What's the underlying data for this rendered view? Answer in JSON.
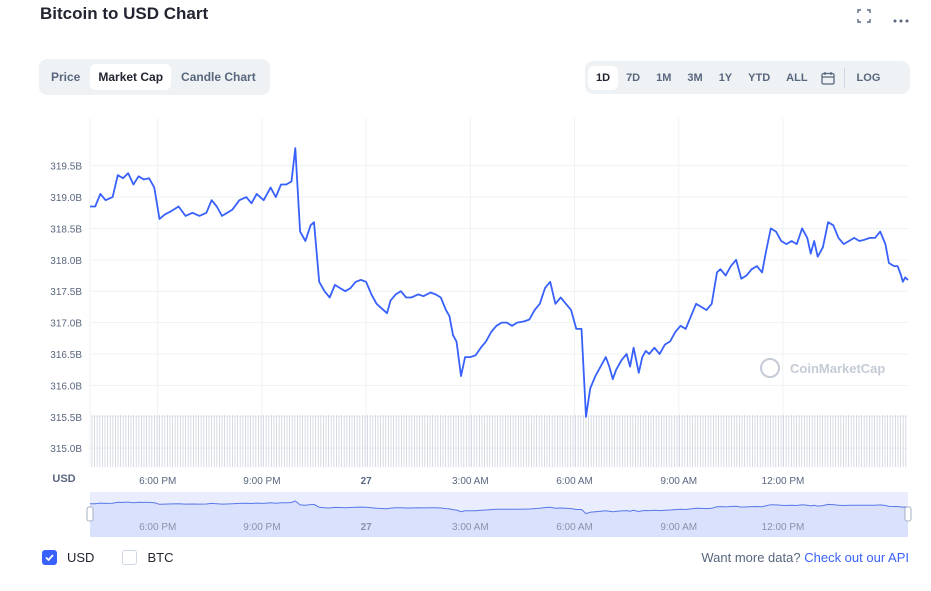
{
  "header": {
    "title": "Bitcoin to USD Chart"
  },
  "icons": {
    "fullscreen": "fullscreen-icon",
    "more": "more-icon",
    "calendar": "calendar-icon",
    "watermark": "coinmarketcap-logo-icon"
  },
  "chart_tabs": [
    "Price",
    "Market Cap",
    "Candle Chart"
  ],
  "active_chart_tab": "Market Cap",
  "range_tabs": [
    "1D",
    "7D",
    "1M",
    "3M",
    "1Y",
    "YTD",
    "ALL"
  ],
  "active_range": "1D",
  "log_label": "LOG",
  "watermark": "CoinMarketCap",
  "legend": {
    "usd": "USD",
    "btc": "BTC"
  },
  "footer": {
    "text": "Want more data?",
    "link": "Check out our API"
  },
  "colors": {
    "line": "#3861fb",
    "accent": "#3861fb",
    "grid": "#eff2f5",
    "volume": "#a6b0c3",
    "navigator_fill": "#e9edfe"
  },
  "chart_data": {
    "type": "line",
    "title": "Bitcoin to USD Chart",
    "ylabel": "USD",
    "y_ticks": [
      "315.0B",
      "315.5B",
      "316.0B",
      "316.5B",
      "317.0B",
      "317.5B",
      "318.0B",
      "318.5B",
      "319.0B",
      "319.5B"
    ],
    "ylim": [
      314.7,
      320.1
    ],
    "x_ticks": [
      "6:00 PM",
      "9:00 PM",
      "27",
      "3:00 AM",
      "6:00 AM",
      "9:00 AM",
      "12:00 PM"
    ],
    "x_tick_hours": [
      18,
      21,
      24,
      27,
      30,
      33,
      36
    ],
    "xlim_hours": [
      16.05,
      39.6
    ],
    "grid": true,
    "series": [
      {
        "name": "USD",
        "points": [
          [
            16.05,
            318.85
          ],
          [
            16.2,
            318.85
          ],
          [
            16.35,
            319.05
          ],
          [
            16.5,
            318.95
          ],
          [
            16.7,
            319.0
          ],
          [
            16.85,
            319.35
          ],
          [
            17.0,
            319.3
          ],
          [
            17.15,
            319.38
          ],
          [
            17.3,
            319.2
          ],
          [
            17.45,
            319.33
          ],
          [
            17.6,
            319.28
          ],
          [
            17.75,
            319.3
          ],
          [
            17.9,
            319.15
          ],
          [
            18.05,
            318.65
          ],
          [
            18.2,
            318.72
          ],
          [
            18.4,
            318.78
          ],
          [
            18.6,
            318.85
          ],
          [
            18.8,
            318.7
          ],
          [
            19.0,
            318.75
          ],
          [
            19.2,
            318.7
          ],
          [
            19.4,
            318.75
          ],
          [
            19.55,
            318.95
          ],
          [
            19.7,
            318.85
          ],
          [
            19.85,
            318.7
          ],
          [
            20.0,
            318.75
          ],
          [
            20.15,
            318.8
          ],
          [
            20.35,
            318.95
          ],
          [
            20.55,
            319.0
          ],
          [
            20.7,
            318.9
          ],
          [
            20.85,
            319.05
          ],
          [
            21.05,
            318.95
          ],
          [
            21.25,
            319.15
          ],
          [
            21.4,
            319.0
          ],
          [
            21.55,
            319.2
          ],
          [
            21.7,
            319.2
          ],
          [
            21.85,
            319.25
          ],
          [
            21.96,
            319.78
          ],
          [
            22.1,
            318.45
          ],
          [
            22.25,
            318.3
          ],
          [
            22.4,
            318.55
          ],
          [
            22.5,
            318.6
          ],
          [
            22.65,
            317.65
          ],
          [
            22.8,
            317.5
          ],
          [
            22.95,
            317.4
          ],
          [
            23.1,
            317.6
          ],
          [
            23.25,
            317.55
          ],
          [
            23.4,
            317.5
          ],
          [
            23.55,
            317.55
          ],
          [
            23.7,
            317.65
          ],
          [
            23.85,
            317.68
          ],
          [
            24.0,
            317.65
          ],
          [
            24.15,
            317.45
          ],
          [
            24.3,
            317.3
          ],
          [
            24.5,
            317.2
          ],
          [
            24.6,
            317.15
          ],
          [
            24.7,
            317.35
          ],
          [
            24.85,
            317.45
          ],
          [
            25.0,
            317.5
          ],
          [
            25.15,
            317.4
          ],
          [
            25.3,
            317.4
          ],
          [
            25.5,
            317.45
          ],
          [
            25.65,
            317.42
          ],
          [
            25.85,
            317.48
          ],
          [
            26.0,
            317.45
          ],
          [
            26.15,
            317.4
          ],
          [
            26.3,
            317.2
          ],
          [
            26.4,
            317.1
          ],
          [
            26.5,
            316.8
          ],
          [
            26.6,
            316.7
          ],
          [
            26.73,
            316.15
          ],
          [
            26.85,
            316.45
          ],
          [
            27.0,
            316.45
          ],
          [
            27.15,
            316.48
          ],
          [
            27.3,
            316.6
          ],
          [
            27.45,
            316.7
          ],
          [
            27.6,
            316.85
          ],
          [
            27.75,
            316.95
          ],
          [
            27.9,
            317.0
          ],
          [
            28.05,
            317.0
          ],
          [
            28.2,
            316.95
          ],
          [
            28.35,
            317.0
          ],
          [
            28.55,
            317.02
          ],
          [
            28.7,
            317.05
          ],
          [
            28.85,
            317.2
          ],
          [
            29.0,
            317.3
          ],
          [
            29.15,
            317.55
          ],
          [
            29.3,
            317.65
          ],
          [
            29.45,
            317.3
          ],
          [
            29.6,
            317.4
          ],
          [
            29.75,
            317.3
          ],
          [
            29.9,
            317.2
          ],
          [
            30.05,
            316.9
          ],
          [
            30.2,
            316.9
          ],
          [
            30.33,
            315.5
          ],
          [
            30.45,
            315.95
          ],
          [
            30.6,
            316.15
          ],
          [
            30.75,
            316.3
          ],
          [
            30.9,
            316.45
          ],
          [
            31.0,
            316.3
          ],
          [
            31.1,
            316.1
          ],
          [
            31.2,
            316.25
          ],
          [
            31.35,
            316.4
          ],
          [
            31.5,
            316.5
          ],
          [
            31.6,
            316.3
          ],
          [
            31.7,
            316.6
          ],
          [
            31.85,
            316.2
          ],
          [
            31.95,
            316.45
          ],
          [
            32.05,
            316.55
          ],
          [
            32.15,
            316.5
          ],
          [
            32.3,
            316.6
          ],
          [
            32.45,
            316.5
          ],
          [
            32.6,
            316.65
          ],
          [
            32.75,
            316.7
          ],
          [
            32.9,
            316.85
          ],
          [
            33.05,
            316.95
          ],
          [
            33.2,
            316.9
          ],
          [
            33.35,
            317.1
          ],
          [
            33.5,
            317.3
          ],
          [
            33.65,
            317.25
          ],
          [
            33.8,
            317.2
          ],
          [
            33.95,
            317.3
          ],
          [
            34.1,
            317.8
          ],
          [
            34.2,
            317.85
          ],
          [
            34.35,
            317.75
          ],
          [
            34.5,
            317.9
          ],
          [
            34.65,
            318.0
          ],
          [
            34.8,
            317.7
          ],
          [
            34.95,
            317.75
          ],
          [
            35.1,
            317.85
          ],
          [
            35.25,
            317.9
          ],
          [
            35.4,
            317.8
          ],
          [
            35.5,
            318.1
          ],
          [
            35.65,
            318.5
          ],
          [
            35.8,
            318.45
          ],
          [
            35.95,
            318.3
          ],
          [
            36.1,
            318.25
          ],
          [
            36.25,
            318.3
          ],
          [
            36.4,
            318.25
          ],
          [
            36.55,
            318.5
          ],
          [
            36.7,
            318.35
          ],
          [
            36.8,
            318.1
          ],
          [
            36.9,
            318.3
          ],
          [
            37.0,
            318.05
          ],
          [
            37.15,
            318.2
          ],
          [
            37.3,
            318.6
          ],
          [
            37.45,
            318.55
          ],
          [
            37.6,
            318.35
          ],
          [
            37.75,
            318.25
          ],
          [
            37.9,
            318.3
          ],
          [
            38.05,
            318.35
          ],
          [
            38.2,
            318.3
          ],
          [
            38.35,
            318.32
          ],
          [
            38.5,
            318.35
          ],
          [
            38.65,
            318.35
          ],
          [
            38.8,
            318.45
          ],
          [
            38.95,
            318.25
          ],
          [
            39.05,
            317.95
          ],
          [
            39.2,
            317.9
          ],
          [
            39.3,
            317.9
          ],
          [
            39.4,
            317.75
          ],
          [
            39.45,
            317.65
          ],
          [
            39.52,
            317.72
          ],
          [
            39.6,
            317.68
          ]
        ]
      }
    ]
  }
}
